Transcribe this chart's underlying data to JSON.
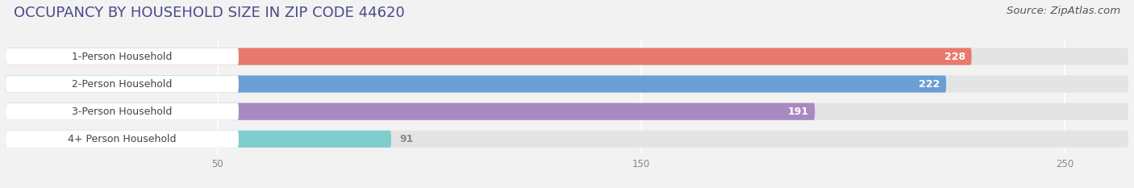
{
  "title": "OCCUPANCY BY HOUSEHOLD SIZE IN ZIP CODE 44620",
  "source": "Source: ZipAtlas.com",
  "categories": [
    "1-Person Household",
    "2-Person Household",
    "3-Person Household",
    "4+ Person Household"
  ],
  "values": [
    228,
    222,
    191,
    91
  ],
  "bar_colors": [
    "#E8796C",
    "#6B9FD4",
    "#A889C0",
    "#7ECECE"
  ],
  "value_label_colors": [
    "white",
    "white",
    "white",
    "#555555"
  ],
  "xlim": [
    0,
    265
  ],
  "xticks": [
    50,
    150,
    250
  ],
  "background_color": "#f2f2f2",
  "bar_bg_color": "#e4e4e4",
  "label_bg_color": "#ffffff",
  "title_fontsize": 13,
  "source_fontsize": 9.5,
  "bar_label_fontsize": 9,
  "category_fontsize": 9,
  "title_color": "#4a4a8a",
  "category_label_color": "#444444",
  "tick_color": "#888888"
}
